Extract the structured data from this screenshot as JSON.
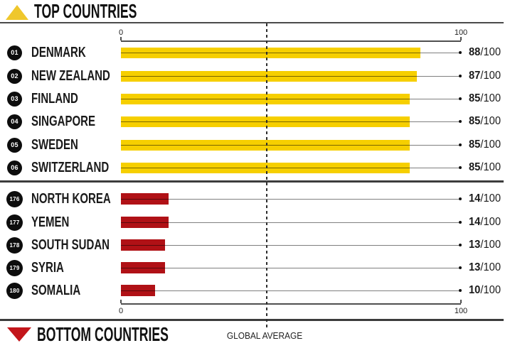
{
  "colors": {
    "top_bar": "#F6CF00",
    "bottom_bar": "#B01116",
    "top_triangle": "#EFC72C",
    "bottom_triangle": "#C3161B"
  },
  "header_top": {
    "label": "TOP COUNTRIES"
  },
  "header_bottom": {
    "label": "BOTTOM COUNTRIES"
  },
  "axis": {
    "min_label": "0",
    "max_label": "100"
  },
  "global_average": {
    "label": "GLOBAL AVERAGE"
  },
  "chart_data": {
    "type": "bar",
    "orientation": "horizontal",
    "xlim": [
      0,
      100
    ],
    "axis_tick_labels": [
      "0",
      "100"
    ],
    "global_average_value": 43,
    "score_denominator": "/100",
    "legend_position": "none",
    "grid": false,
    "groups": [
      {
        "name": "TOP COUNTRIES",
        "bar_color": "#F6CF00",
        "rows": [
          {
            "rank": "01",
            "country": "DENMARK",
            "score": 88
          },
          {
            "rank": "02",
            "country": "NEW ZEALAND",
            "score": 87
          },
          {
            "rank": "03",
            "country": "FINLAND",
            "score": 85
          },
          {
            "rank": "04",
            "country": "SINGAPORE",
            "score": 85
          },
          {
            "rank": "05",
            "country": "SWEDEN",
            "score": 85
          },
          {
            "rank": "06",
            "country": "SWITZERLAND",
            "score": 85
          }
        ]
      },
      {
        "name": "BOTTOM COUNTRIES",
        "bar_color": "#B01116",
        "rows": [
          {
            "rank": "176",
            "country": "NORTH KOREA",
            "score": 14
          },
          {
            "rank": "177",
            "country": "YEMEN",
            "score": 14
          },
          {
            "rank": "178",
            "country": "SOUTH SUDAN",
            "score": 13
          },
          {
            "rank": "179",
            "country": "SYRIA",
            "score": 13
          },
          {
            "rank": "180",
            "country": "SOMALIA",
            "score": 10
          }
        ]
      }
    ]
  }
}
